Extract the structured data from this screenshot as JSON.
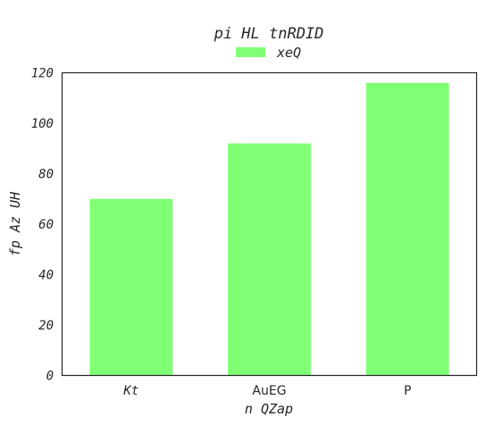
{
  "chart_data": {
    "type": "bar",
    "title": "pi HL tnRDID",
    "xlabel": "n  QZap",
    "ylabel": "fp Az UH",
    "categories": [
      "Kt",
      "AuEG",
      "P"
    ],
    "series": [
      {
        "name": "xeQ",
        "values": [
          70,
          92,
          116
        ],
        "color": "#80ff75"
      }
    ],
    "ylim": [
      0,
      120
    ],
    "yticks": [
      "0",
      "20",
      "40",
      "60",
      "80",
      "100",
      "120"
    ],
    "grid": false,
    "legend_position": "top-center"
  }
}
